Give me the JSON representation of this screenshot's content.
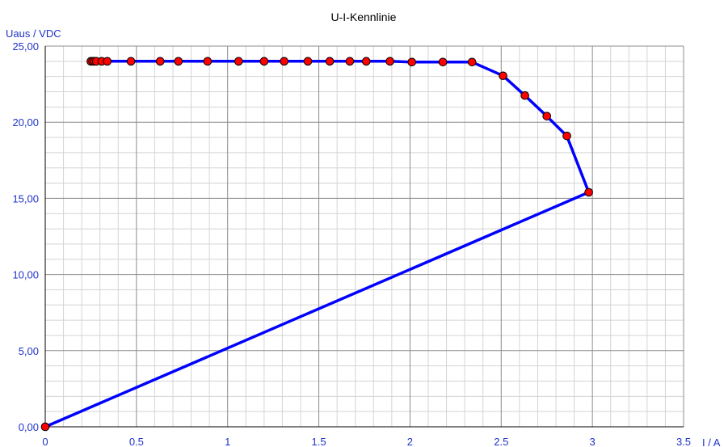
{
  "chart_data": {
    "type": "scatter",
    "title": "U-I-Kennlinie",
    "xlabel": "I / A",
    "ylabel": "Uaus / VDC",
    "xlim": [
      0,
      3.5
    ],
    "ylim": [
      0,
      25
    ],
    "x_ticks": [
      0,
      0.5,
      1,
      1.5,
      2,
      2.5,
      3,
      3.5
    ],
    "x_tick_labels": [
      "0",
      "0.5",
      "1",
      "1.5",
      "2",
      "2.5",
      "3",
      "3.5"
    ],
    "y_ticks": [
      0,
      5,
      10,
      15,
      20,
      25
    ],
    "y_tick_labels": [
      "0,00",
      "5,00",
      "10,00",
      "15,00",
      "20,00",
      "25,00"
    ],
    "minor_x_step": 0.1,
    "minor_y_step": 1,
    "grid": true,
    "legend": "none",
    "line_color": "#0000ff",
    "marker_color": "#ff0000",
    "text_color": "#1f33c8",
    "series": [
      {
        "x": [
          0.25,
          0.26,
          0.27,
          0.28,
          0.31,
          0.34,
          0.47,
          0.63,
          0.73,
          0.89,
          1.06,
          1.2,
          1.31,
          1.44,
          1.56,
          1.67,
          1.76,
          1.89,
          2.01,
          2.18,
          2.34,
          2.51,
          2.63,
          2.75,
          2.86,
          2.98,
          0.0
        ],
        "y": [
          24.0,
          24.0,
          24.0,
          24.0,
          24.0,
          24.0,
          24.0,
          24.0,
          24.0,
          24.0,
          24.0,
          24.0,
          24.0,
          24.0,
          24.0,
          24.0,
          24.0,
          24.0,
          23.95,
          23.95,
          23.95,
          23.05,
          21.75,
          20.4,
          19.1,
          15.4,
          0.0
        ]
      }
    ]
  }
}
